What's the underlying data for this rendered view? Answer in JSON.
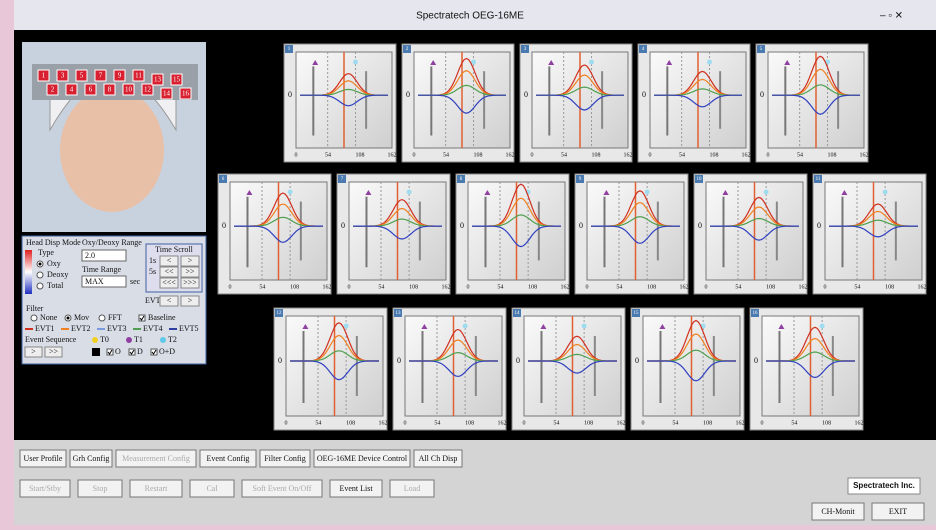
{
  "window": {
    "title": "Spectratech OEG-16ME"
  },
  "channels": [
    "1",
    "2",
    "3",
    "4",
    "5",
    "6",
    "7",
    "8",
    "9",
    "10",
    "11",
    "12",
    "13",
    "14",
    "15",
    "16"
  ],
  "graph": {
    "y_label": "0",
    "x_ticks": [
      "0",
      "54",
      "108",
      "162"
    ]
  },
  "control": {
    "head_disp_mode": "Head Disp Mode",
    "type_label": "Type",
    "types": [
      "Oxy",
      "Deoxy",
      "Total"
    ],
    "range_label": "Oxy/Deoxy Range",
    "range_value": "2.0",
    "time_range_label": "Time Range",
    "time_range_value": "MAX",
    "time_unit": "sec",
    "time_scroll": {
      "title": "Time Scroll",
      "rows": [
        [
          "1s",
          "<",
          ">"
        ],
        [
          "5s",
          "<<",
          ">>"
        ],
        [
          "",
          "<<<",
          ">>>"
        ]
      ]
    },
    "evt_label": "EVT",
    "evt_buttons": [
      "<",
      ">"
    ],
    "filter_label": "Filter",
    "filters": [
      "None",
      "Mov",
      "FFT"
    ],
    "baseline": "Baseline",
    "events": [
      {
        "name": "EVT1",
        "color": "#d03020"
      },
      {
        "name": "EVT2",
        "color": "#f08020"
      },
      {
        "name": "EVT3",
        "color": "#7a9be0"
      },
      {
        "name": "EVT4",
        "color": "#50a050"
      },
      {
        "name": "EVT5",
        "color": "#3040a0"
      }
    ],
    "sequence_label": "Event Sequence",
    "sequence_marks": [
      "T0",
      "T1",
      "T2"
    ],
    "seq_buttons": [
      ">",
      ">>"
    ],
    "checks": [
      "O",
      "D",
      "O+D"
    ]
  },
  "buttons": {
    "row1": [
      "User Profile",
      "Grh Config",
      "Measurement Config",
      "Event Config",
      "Filter Config",
      "OEG-16ME Device Control",
      "All Ch Disp"
    ],
    "row2": [
      "Start/Stby",
      "Stop",
      "Restart",
      "Cal",
      "Soft Event On/Off",
      "Event List",
      "Load"
    ]
  },
  "brand": "Spectratech Inc.",
  "right_buttons": [
    "CH-Monit",
    "EXIT"
  ]
}
